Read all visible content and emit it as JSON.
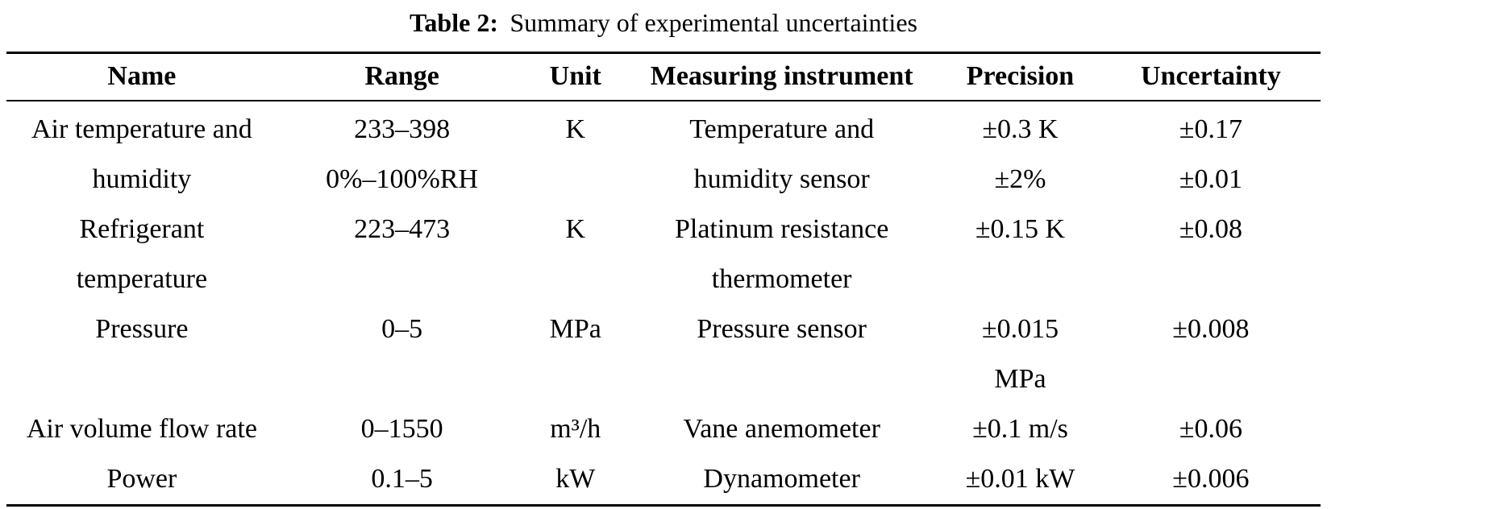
{
  "caption": {
    "label": "Table 2:",
    "text": "Summary of experimental uncertainties"
  },
  "table": {
    "headers": [
      "Name",
      "Range",
      "Unit",
      "Measuring instrument",
      "Precision",
      "Uncertainty"
    ],
    "rows": [
      [
        [
          "Air temperature and",
          "humidity"
        ],
        [
          "233–398",
          "0%–100%RH"
        ],
        [
          "K"
        ],
        [
          "Temperature and",
          "humidity sensor"
        ],
        [
          "±0.3 K",
          "±2%"
        ],
        [
          "±0.17",
          "±0.01"
        ]
      ],
      [
        [
          "Refrigerant",
          "temperature"
        ],
        [
          "223–473"
        ],
        [
          "K"
        ],
        [
          "Platinum resistance",
          "thermometer"
        ],
        [
          "±0.15 K"
        ],
        [
          "±0.08"
        ]
      ],
      [
        [
          "Pressure"
        ],
        [
          "0–5"
        ],
        [
          "MPa"
        ],
        [
          "Pressure sensor"
        ],
        [
          "±0.015",
          "MPa"
        ],
        [
          "±0.008"
        ]
      ],
      [
        [
          "Air volume flow rate"
        ],
        [
          "0–1550"
        ],
        [
          "m³/h"
        ],
        [
          "Vane anemometer"
        ],
        [
          "±0.1 m/s"
        ],
        [
          "±0.06"
        ]
      ],
      [
        [
          "Power"
        ],
        [
          "0.1–5"
        ],
        [
          "kW"
        ],
        [
          "Dynamometer"
        ],
        [
          "±0.01 kW"
        ],
        [
          "±0.006"
        ]
      ]
    ]
  }
}
